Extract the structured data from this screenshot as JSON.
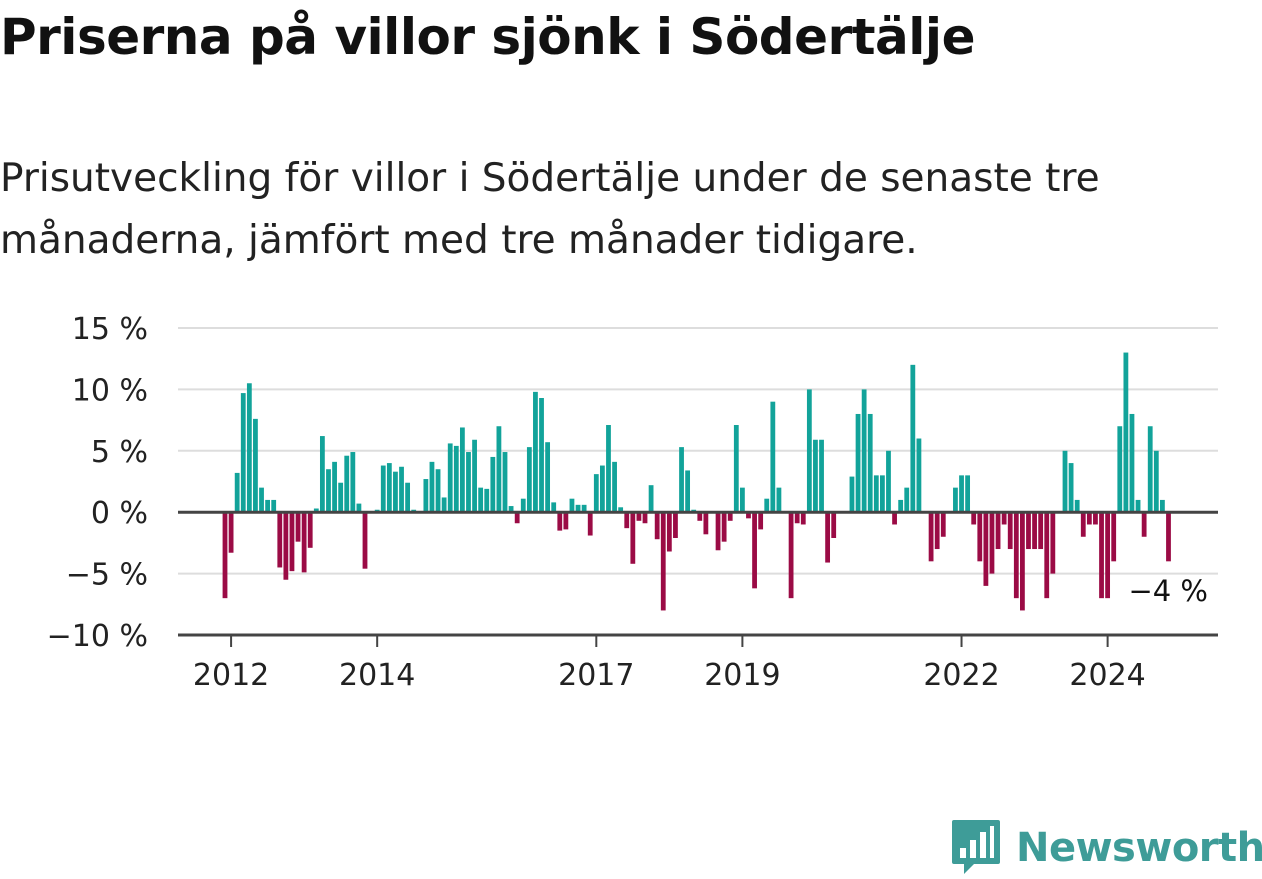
{
  "title": "Priserna på villor sjönk i Södertälje",
  "subtitle": "Prisutveckling för villor i Södertälje under de senaste tre månaderna, jämfört med tre månader tidigare.",
  "logo": {
    "name": "Newsworthy",
    "icon": "bar-chart-badge-icon"
  },
  "colors": {
    "positive": "#12a39a",
    "negative": "#9b0b45",
    "axis": "#444444",
    "grid": "#dddddd",
    "text": "#222222",
    "brand": "#3e9c98"
  },
  "chart_data": {
    "type": "bar",
    "y_unit": "%",
    "ylim": [
      -10,
      15
    ],
    "yticks": [
      15,
      10,
      5,
      0,
      -5,
      -10
    ],
    "ytick_labels": [
      "15 %",
      "10 %",
      "5 %",
      "0 %",
      "−5 %",
      "−10 %"
    ],
    "xticks": [
      {
        "label": "2012",
        "value": "2012-01"
      },
      {
        "label": "2014",
        "value": "2014-01"
      },
      {
        "label": "2017",
        "value": "2017-01"
      },
      {
        "label": "2019",
        "value": "2019-01"
      },
      {
        "label": "2022",
        "value": "2022-01"
      },
      {
        "label": "2024",
        "value": "2024-01"
      }
    ],
    "start_month": "2011-12",
    "values": [
      -7,
      -3.3,
      3.2,
      9.7,
      10.5,
      7.6,
      2,
      1,
      1,
      -4.5,
      -5.5,
      -4.8,
      -2.4,
      -4.9,
      -2.9,
      0.3,
      6.2,
      3.5,
      4.1,
      2.4,
      4.6,
      4.9,
      0.7,
      -4.6,
      0,
      0.2,
      3.8,
      4,
      3.3,
      3.7,
      2.4,
      0.2,
      0,
      2.7,
      4.1,
      3.5,
      1.2,
      5.6,
      5.4,
      6.9,
      4.9,
      5.9,
      2,
      1.9,
      4.5,
      7,
      4.9,
      0.5,
      -0.9,
      1.1,
      5.3,
      9.8,
      9.3,
      5.7,
      0.8,
      -1.5,
      -1.4,
      1.1,
      0.6,
      0.6,
      -1.9,
      3.1,
      3.8,
      7.1,
      4.1,
      0.4,
      -1.3,
      -4.2,
      -0.7,
      -0.9,
      2.2,
      -2.2,
      -8,
      -3.2,
      -2.1,
      5.3,
      3.4,
      0.2,
      -0.7,
      -1.8,
      0,
      -3.1,
      -2.4,
      -0.7,
      7.1,
      2,
      -0.5,
      -6.2,
      -1.4,
      1.1,
      9,
      2,
      0,
      -7,
      -0.9,
      -1,
      10,
      5.9,
      5.9,
      -4.1,
      -2.1,
      0,
      0,
      2.9,
      8,
      10,
      8,
      3,
      3,
      5,
      -1,
      1,
      2,
      12,
      6,
      0,
      -4,
      -3,
      -2,
      0,
      2,
      3,
      3,
      -1,
      -4,
      -6,
      -5,
      -3,
      -1,
      -3,
      -7,
      -8,
      -3,
      -3,
      -3,
      -7,
      -5,
      0,
      5,
      4,
      1,
      -2,
      -1,
      -1,
      -7,
      -7,
      -4,
      7,
      13,
      8,
      1,
      -2,
      7,
      5,
      1,
      -4
    ],
    "annotation": {
      "label": "−4 %",
      "value": -4
    }
  }
}
